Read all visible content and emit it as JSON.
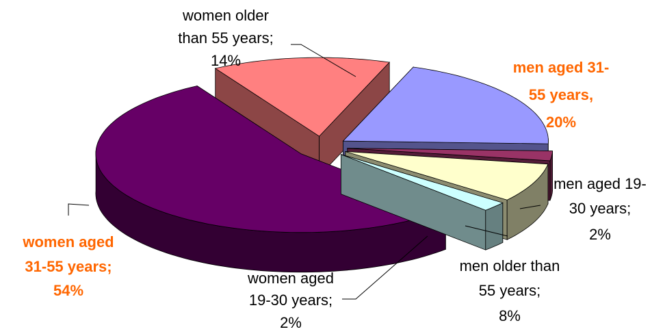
{
  "chart_data": {
    "type": "pie3d",
    "values": [
      20,
      2,
      8,
      2,
      54,
      14
    ],
    "labels": [
      [
        "men aged 31-",
        "55 years,",
        "20%"
      ],
      [
        "men aged 19-",
        "30 years;",
        "2%"
      ],
      [
        "men older than",
        "55 years;",
        "8%"
      ],
      [
        "women aged",
        "19-30 years;",
        "2%"
      ],
      [
        "women aged",
        "31-55 years;",
        "54%"
      ],
      [
        "women older",
        "than 55 years;",
        "14%"
      ]
    ],
    "colors": [
      "#9999ff",
      "#993366",
      "#ffffcc",
      "#ccffff",
      "#660066",
      "#ff8080"
    ],
    "label_colors": [
      "#ff6600",
      "#000000",
      "#000000",
      "#000000",
      "#ff6600",
      "#000000"
    ],
    "label_bold": [
      true,
      false,
      false,
      false,
      true,
      false
    ]
  }
}
